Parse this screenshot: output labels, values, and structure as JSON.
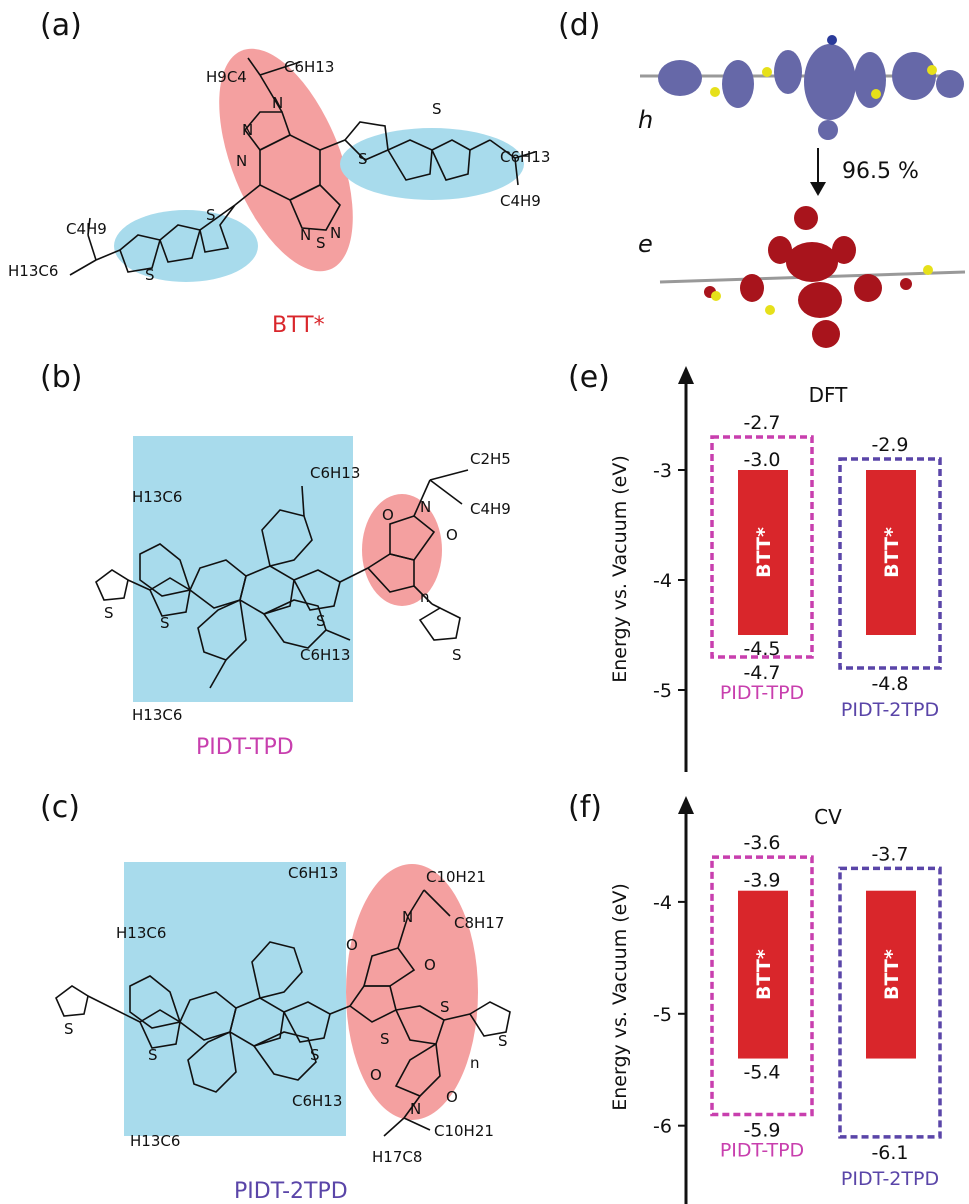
{
  "panels": {
    "a": "(a)",
    "b": "(b)",
    "c": "(c)",
    "d": "(d)",
    "e": "(e)",
    "f": "(f)"
  },
  "molecules": {
    "a_name": "BTT*",
    "b_name": "PIDT-TPD",
    "c_name": "PIDT-2TPD",
    "atoms": {
      "S": "S",
      "N": "N",
      "O": "O",
      "n": "n"
    },
    "subs": {
      "h9c4": "H9C4",
      "c6h13": "C6H13",
      "c4h9": "C4H9",
      "h13c6": "H13C6",
      "c2h5": "C2H5",
      "c10h21": "C10H21",
      "c8h17": "C8H17",
      "h17c8": "H17C8"
    }
  },
  "orbitals": {
    "h_label": "h",
    "e_label": "e",
    "transition": "96.5 %"
  },
  "colors": {
    "donor_blue": "#a8dbec",
    "acceptor_pink": "#f4a0a0",
    "btt_red": "#d9262b",
    "tpd_magenta": "#c83fae",
    "tpd2_purple": "#5a45a8",
    "hole_orbital": "#6668a8",
    "electron_orbital": "#a8141c"
  },
  "chart_data": [
    {
      "type": "energy-level diagram",
      "title": "DFT",
      "ylabel": "Energy vs. Vacuum (eV)",
      "yticks": [
        "-3",
        "-4",
        "-5"
      ],
      "ylim": [
        -5.8,
        -2.0
      ],
      "acceptor": {
        "name": "BTT*",
        "lumo": -3.0,
        "homo": -4.5,
        "lumo_label": "-3.0",
        "homo_label": "-4.5"
      },
      "donors": [
        {
          "name": "PIDT-TPD",
          "lumo": -2.7,
          "homo": -4.7,
          "lumo_label": "-2.7",
          "homo_label": "-4.7"
        },
        {
          "name": "PIDT-2TPD",
          "lumo": -2.9,
          "homo": -4.8,
          "lumo_label": "-2.9",
          "homo_label": "-4.8"
        }
      ]
    },
    {
      "type": "energy-level diagram",
      "title": "CV",
      "ylabel": "Energy vs. Vacuum (eV)",
      "yticks": [
        "-4",
        "-5",
        "-6"
      ],
      "ylim": [
        -6.7,
        -3.0
      ],
      "acceptor": {
        "name": "BTT*",
        "lumo": -3.9,
        "homo": -5.4,
        "lumo_label": "-3.9",
        "homo_label": "-5.4"
      },
      "donors": [
        {
          "name": "PIDT-TPD",
          "lumo": -3.6,
          "homo": -5.9,
          "lumo_label": "-3.6",
          "homo_label": "-5.9"
        },
        {
          "name": "PIDT-2TPD",
          "lumo": -3.7,
          "homo": -6.1,
          "lumo_label": "-3.7",
          "homo_label": "-6.1"
        }
      ]
    }
  ]
}
